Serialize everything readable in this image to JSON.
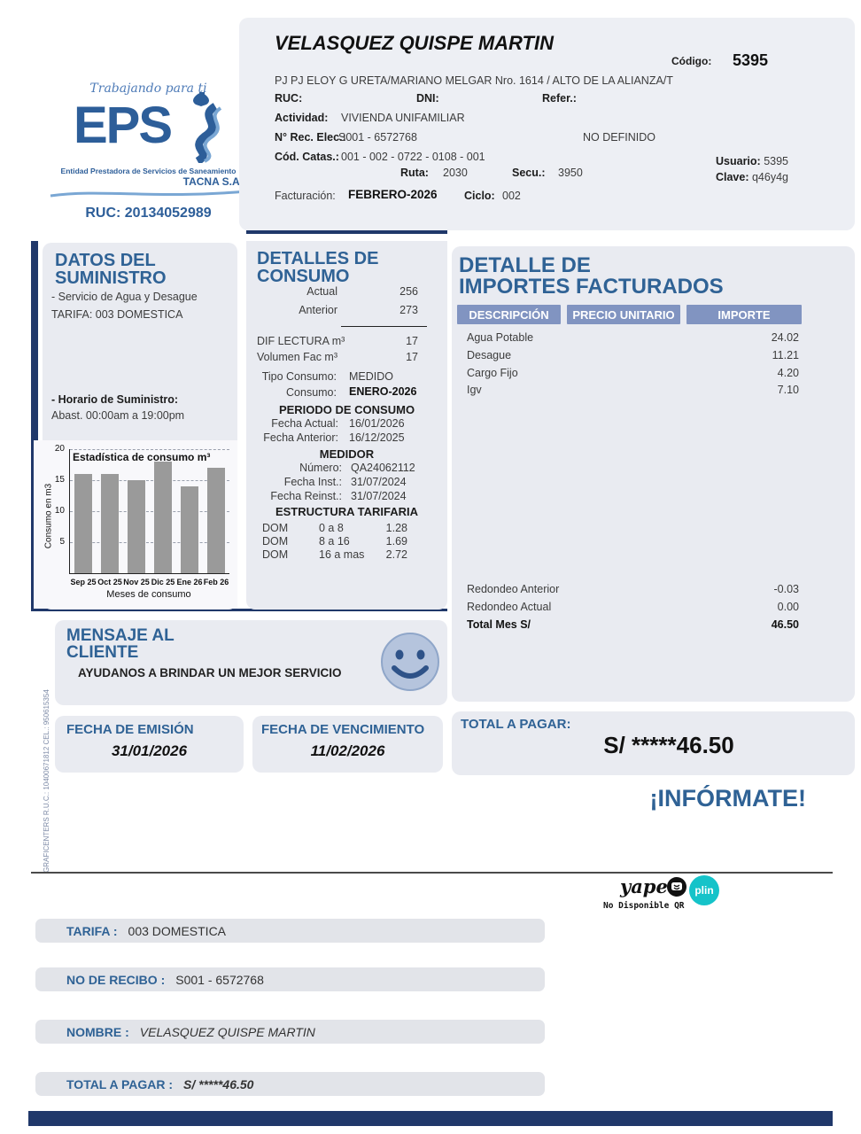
{
  "colors": {
    "accent_blue": "#2f6295",
    "navy": "#20386a",
    "table_header": "#8194c1",
    "panel_bg": "#e9ebf1",
    "bar_gray": "#9a9a9a",
    "plin_teal": "#15c3c9"
  },
  "logo": {
    "tagline": "Trabajando para ti",
    "brand": "EPS",
    "subtitle": "Entidad Prestadora de Servicios de Saneamiento",
    "company": "TACNA S.A.",
    "ruc": "RUC: 20134052989"
  },
  "header": {
    "customer_name": "VELASQUEZ QUISPE MARTIN",
    "codigo_label": "Código:",
    "codigo_value": "5395",
    "address": "PJ PJ ELOY G URETA/MARIANO MELGAR Nro. 1614 / ALTO DE LA ALIANZA/T",
    "ruc_label": "RUC:",
    "dni_label": "DNI:",
    "refer_label": "Refer.:",
    "actividad_label": "Actividad:",
    "actividad_value": "VIVIENDA UNIFAMILIAR",
    "rec_elec_label": "N° Rec. Elec.:",
    "rec_elec_value": "S001 - 6572768",
    "no_definido": "NO DEFINIDO",
    "cod_catas_label": "Cód. Catas.:",
    "cod_catas_value": "001 - 002 - 0722 - 0108 - 001",
    "ruta_label": "Ruta:",
    "ruta_value": "2030",
    "secu_label": "Secu.:",
    "secu_value": "3950",
    "usuario_label": "Usuario:",
    "usuario_value": "5395",
    "clave_label": "Clave:",
    "clave_value": "q46y4g",
    "facturacion_label": "Facturación:",
    "facturacion_value": "FEBRERO-2026",
    "ciclo_label": "Ciclo:",
    "ciclo_value": "002"
  },
  "suministro": {
    "title_line1": "DATOS DEL",
    "title_line2": "SUMINISTRO",
    "service": "- Servicio de Agua y Desague",
    "tarifa": "TARIFA: 003 DOMESTICA",
    "horario_label": "- Horario de Suministro:",
    "horario_value": "Abast. 00:00am a 19:00pm"
  },
  "chart_data": {
    "type": "bar",
    "title": "Estadística de consumo m³",
    "xlabel": "Meses de consumo",
    "ylabel": "Consumo en m3",
    "categories": [
      "Sep 25",
      "Oct 25",
      "Nov 25",
      "Dic 25",
      "Ene 26",
      "Feb 26"
    ],
    "values": [
      16,
      16,
      15,
      18,
      14,
      17
    ],
    "ylim": [
      0,
      20
    ],
    "yticks": [
      5,
      10,
      15,
      20
    ],
    "grid": "dashed-horizontal",
    "legend": "none"
  },
  "consumo": {
    "title_line1": "DETALLES DE",
    "title_line2": "CONSUMO",
    "actual_label": "Actual",
    "actual_value": "256",
    "anterior_label": "Anterior",
    "anterior_value": "273",
    "dif_label": "DIF LECTURA m³",
    "dif_value": "17",
    "vol_label": "Volumen Fac m³",
    "vol_value": "17",
    "tipo_label": "Tipo Consumo:",
    "tipo_value": "MEDIDO",
    "consumo_label": "Consumo:",
    "consumo_value": "ENERO-2026",
    "periodo_title": "PERIODO DE CONSUMO",
    "fecha_actual_label": "Fecha Actual:",
    "fecha_actual_value": "16/01/2026",
    "fecha_anterior_label": "Fecha Anterior:",
    "fecha_anterior_value": "16/12/2025",
    "medidor_title": "MEDIDOR",
    "numero_label": "Número:",
    "numero_value": "QA24062112",
    "fecha_inst_label": "Fecha Inst.:",
    "fecha_inst_value": "31/07/2024",
    "fecha_reinst_label": "Fecha Reinst.:",
    "fecha_reinst_value": "31/07/2024",
    "estructura_title": "ESTRUCTURA TARIFARIA",
    "tarifas": [
      {
        "tipo": "DOM",
        "rango": "0 a 8",
        "precio": "1.28"
      },
      {
        "tipo": "DOM",
        "rango": "8 a 16",
        "precio": "1.69"
      },
      {
        "tipo": "DOM",
        "rango": "16 a mas",
        "precio": "2.72"
      }
    ]
  },
  "importes": {
    "title_line1": "DETALLE DE",
    "title_line2": "IMPORTES FACTURADOS",
    "headers": [
      "DESCRIPCIÓN",
      "PRECIO UNITARIO",
      "IMPORTE"
    ],
    "rows": [
      {
        "desc": "Agua Potable",
        "importe": "24.02"
      },
      {
        "desc": "Desague",
        "importe": "11.21"
      },
      {
        "desc": "Cargo Fijo",
        "importe": "4.20"
      },
      {
        "desc": "Igv",
        "importe": "7.10"
      }
    ],
    "redondeo_anterior_label": "Redondeo Anterior",
    "redondeo_anterior_value": "-0.03",
    "redondeo_actual_label": "Redondeo Actual",
    "redondeo_actual_value": "0.00",
    "total_label": "Total Mes S/",
    "total_value": "46.50"
  },
  "mensaje": {
    "title_line1": "MENSAJE AL",
    "title_line2": "CLIENTE",
    "body": "AYUDANOS A BRINDAR UN MEJOR SERVICIO"
  },
  "fechas": {
    "emision_label": "FECHA DE EMISIÓN",
    "emision_value": "31/01/2026",
    "vencimiento_label": "FECHA DE VENCIMIENTO",
    "vencimiento_value": "11/02/2026"
  },
  "total": {
    "label": "TOTAL A PAGAR:",
    "value": "S/ *****46.50"
  },
  "informate": "¡INFÓRMATE!",
  "payments": {
    "yape": "yape",
    "plin": "plin",
    "qr_note": "No Disponible QR"
  },
  "print_credit": "GRAFICENTERS   R.U.C.: 10400671812 CEL.: 950615354",
  "footer_fields": [
    {
      "label": "TARIFA :",
      "value": "003 DOMESTICA"
    },
    {
      "label": "NO DE RECIBO :",
      "value": "S001 - 6572768"
    },
    {
      "label": "NOMBRE :",
      "value": "VELASQUEZ QUISPE MARTIN"
    },
    {
      "label": "TOTAL A PAGAR :",
      "value": "S/ *****46.50"
    }
  ]
}
